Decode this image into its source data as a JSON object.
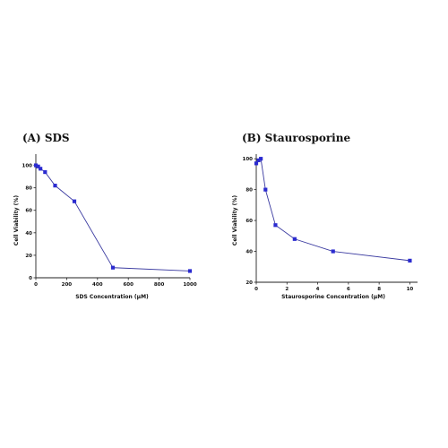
{
  "chart_data": [
    {
      "type": "line",
      "title": "(A)  SDS",
      "xlabel": "SDS Concentration (μM)",
      "ylabel": "Cell Viability (%)",
      "xlim": [
        0,
        1000
      ],
      "ylim": [
        0,
        110
      ],
      "xticks": [
        0,
        200,
        400,
        600,
        800,
        1000
      ],
      "yticks": [
        0,
        20,
        40,
        60,
        80,
        100
      ],
      "grid": false,
      "marker": "square",
      "color": "#2b2bd0",
      "x": [
        0,
        15,
        30,
        60,
        125,
        250,
        500,
        1000
      ],
      "y": [
        100,
        99,
        97,
        94,
        82,
        68,
        9,
        6
      ]
    },
    {
      "type": "line",
      "title": "(B)  Staurosporine",
      "xlabel": "Staurosporine Concentration (μM)",
      "ylabel": "Cell Viability (%)",
      "xlim": [
        0,
        10.5
      ],
      "ylim": [
        20,
        103
      ],
      "xticks": [
        0,
        2,
        4,
        6,
        8,
        10
      ],
      "yticks": [
        20,
        40,
        60,
        80,
        100
      ],
      "grid": false,
      "marker": "square",
      "color": "#2b2bd0",
      "x": [
        0,
        0.15,
        0.3,
        0.6,
        1.25,
        2.5,
        5,
        10
      ],
      "y": [
        97,
        99,
        100,
        80,
        57,
        48,
        40,
        34
      ]
    }
  ]
}
